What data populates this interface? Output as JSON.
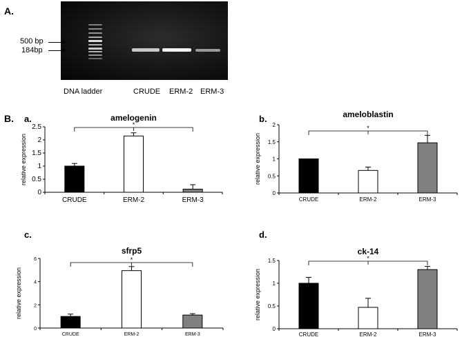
{
  "panel_a": {
    "label": "A.",
    "markers": [
      "500 bp",
      "184bp"
    ],
    "lanes": [
      "DNA ladder",
      "CRUDE",
      "ERM-2",
      "ERM-3"
    ]
  },
  "panel_b": {
    "label": "B."
  },
  "chart_data": [
    {
      "type": "bar",
      "sublabel": "a.",
      "title": "amelogenin",
      "ylabel": "relative expression",
      "categories": [
        "CRUDE",
        "ERM-2",
        "ERM-3"
      ],
      "values": [
        1.0,
        2.15,
        0.12
      ],
      "errors": [
        0.1,
        0.12,
        0.17
      ],
      "bar_colors": [
        "#000000",
        "#ffffff",
        "#808080"
      ],
      "ylim": [
        0,
        2.5
      ],
      "yticks": [
        "0",
        "0.5",
        "1",
        "1.5",
        "2",
        "2.5"
      ],
      "significance": "*"
    },
    {
      "type": "bar",
      "sublabel": "b.",
      "title": "ameloblastin",
      "ylabel": "relative expression",
      "categories": [
        "CRUDE",
        "ERM-2",
        "ERM-3"
      ],
      "values": [
        1.0,
        0.66,
        1.47
      ],
      "errors": [
        0.0,
        0.1,
        0.22
      ],
      "bar_colors": [
        "#000000",
        "#ffffff",
        "#808080"
      ],
      "ylim": [
        0,
        2
      ],
      "yticks": [
        "0",
        "0.5",
        "1",
        "1.5",
        "2"
      ],
      "significance": "*"
    },
    {
      "type": "bar",
      "sublabel": "c.",
      "title": "sfrp5",
      "ylabel": "relative expression",
      "categories": [
        "CRUDE",
        "ERM-2",
        "ERM-3"
      ],
      "values": [
        1.0,
        4.95,
        1.12
      ],
      "errors": [
        0.2,
        0.35,
        0.12
      ],
      "bar_colors": [
        "#000000",
        "#ffffff",
        "#808080"
      ],
      "ylim": [
        0,
        6
      ],
      "yticks": [
        "0",
        "2",
        "4",
        "6"
      ],
      "significance": "*"
    },
    {
      "type": "bar",
      "sublabel": "d.",
      "title": "ck-14",
      "ylabel": "relative expression",
      "categories": [
        "CRUDE",
        "ERM-2",
        "ERM-3"
      ],
      "values": [
        1.0,
        0.47,
        1.3
      ],
      "errors": [
        0.13,
        0.2,
        0.07
      ],
      "bar_colors": [
        "#000000",
        "#ffffff",
        "#808080"
      ],
      "ylim": [
        0,
        1.5
      ],
      "yticks": [
        "0",
        "0.5",
        "1",
        "1.5"
      ],
      "significance": "*"
    }
  ]
}
